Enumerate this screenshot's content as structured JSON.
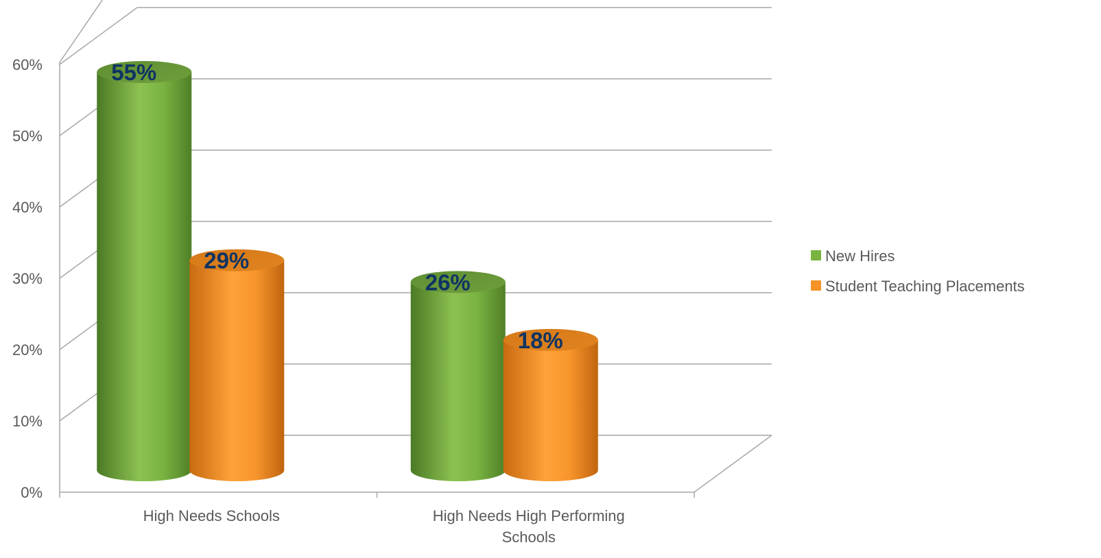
{
  "chart_data": {
    "type": "bar",
    "title": "",
    "xlabel": "",
    "ylabel": "",
    "categories": [
      "High Needs Schools",
      "High Needs High Performing Schools"
    ],
    "category_lines": [
      [
        "High Needs Schools"
      ],
      [
        "High Needs High Performing",
        "Schools"
      ]
    ],
    "series": [
      {
        "name": "New Hires",
        "values": [
          55,
          26
        ],
        "labels": [
          "55%",
          "26%"
        ],
        "color": "#79b441"
      },
      {
        "name": "Student Teaching Placements",
        "values": [
          29,
          18
        ],
        "labels": [
          "29%",
          "18%"
        ],
        "color": "#f59328"
      }
    ],
    "ylim": [
      0,
      60
    ],
    "yticks": [
      "0%",
      "10%",
      "20%",
      "30%",
      "40%",
      "50%",
      "60%"
    ],
    "grid": true,
    "legend": "right",
    "style": "3d-cylinder",
    "label_color": "#0f3463"
  }
}
